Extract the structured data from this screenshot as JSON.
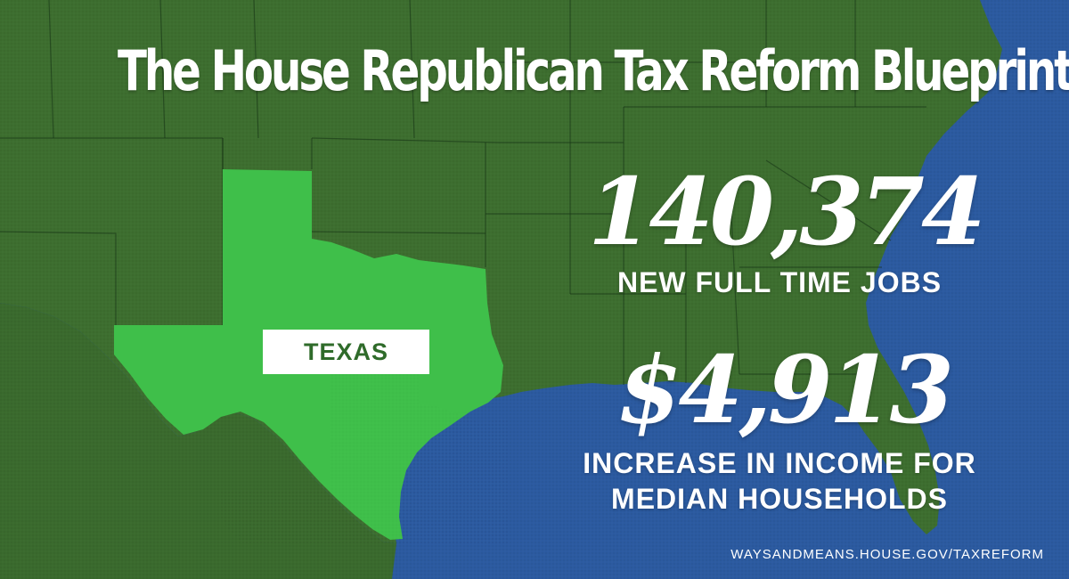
{
  "title": "The House Republican Tax Reform Blueprint",
  "state": {
    "name": "TEXAS"
  },
  "stats": {
    "jobs": {
      "value": "140,374",
      "label": "NEW FULL TIME JOBS"
    },
    "income": {
      "value": "$4,913",
      "label_line1": "INCREASE IN INCOME FOR",
      "label_line2": "MEDIAN HOUSEHOLDS"
    }
  },
  "footer": {
    "url": "WAYSANDMEANS.HOUSE.GOV/TAXREFORM"
  },
  "colors": {
    "land": "#3d6e2f",
    "water": "#2b5aa0",
    "highlight_state": "#3fbf4a",
    "label_text": "#2f6b2a",
    "text": "#ffffff"
  }
}
